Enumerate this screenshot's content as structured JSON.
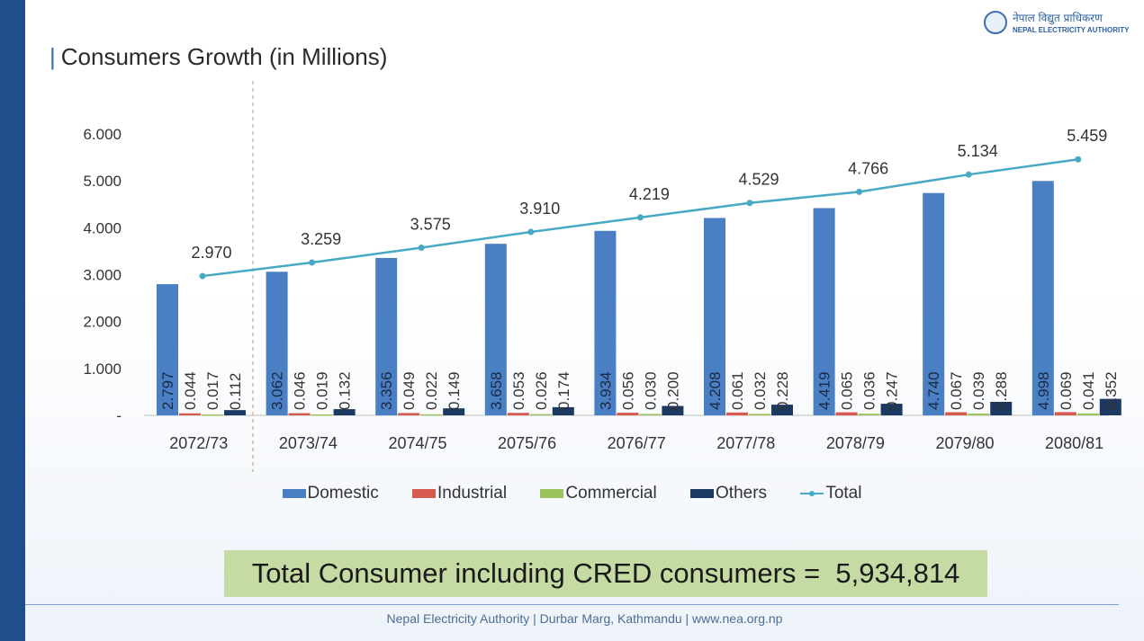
{
  "slide": {
    "title": "Consumers Growth (in Millions)",
    "logo_np": "नेपाल विद्युत प्राधिकरण",
    "logo_en": "NEPAL ELECTRICITY AUTHORITY",
    "highlight_label": "Total Consumer including CRED consumers =",
    "highlight_value": "5,934,814",
    "footer": "Nepal Electricity Authority | Durbar Marg, Kathmandu | www.nea.org.np"
  },
  "colors": {
    "domestic": "#4a7fc3",
    "industrial": "#d65a4e",
    "commercial": "#9bc25b",
    "others": "#1c3961",
    "total": "#48a9c5"
  },
  "chart_data": {
    "type": "bar",
    "categories": [
      "2072/73",
      "2073/74",
      "2074/75",
      "2075/76",
      "2076/77",
      "2077/78",
      "2078/79",
      "2079/80",
      "2080/81"
    ],
    "series": [
      {
        "name": "Domestic",
        "type": "bar",
        "values": [
          2.797,
          3.062,
          3.356,
          3.658,
          3.934,
          4.208,
          4.419,
          4.74,
          4.998
        ],
        "labels": [
          "2.797",
          "3.062",
          "3.356",
          "3.658",
          "3.934",
          "4.208",
          "4.419",
          "4.740",
          "4.998"
        ]
      },
      {
        "name": "Industrial",
        "type": "bar",
        "values": [
          0.044,
          0.046,
          0.049,
          0.053,
          0.056,
          0.061,
          0.065,
          0.067,
          0.069
        ],
        "labels": [
          "0.044",
          "0.046",
          "0.049",
          "0.053",
          "0.056",
          "0.061",
          "0.065",
          "0.067",
          "0.069"
        ]
      },
      {
        "name": "Commercial",
        "type": "bar",
        "values": [
          0.017,
          0.019,
          0.022,
          0.026,
          0.03,
          0.032,
          0.036,
          0.039,
          0.041
        ],
        "labels": [
          "0.017",
          "0.019",
          "0.022",
          "0.026",
          "0.030",
          "0.032",
          "0.036",
          "0.039",
          "0.041"
        ]
      },
      {
        "name": "Others",
        "type": "bar",
        "values": [
          0.112,
          0.132,
          0.149,
          0.174,
          0.2,
          0.228,
          0.247,
          0.288,
          0.352
        ],
        "labels": [
          "0.112",
          "0.132",
          "0.149",
          "0.174",
          "0.200",
          "0.228",
          "0.247",
          "0.288",
          "0.352"
        ]
      },
      {
        "name": "Total",
        "type": "line",
        "values": [
          2.97,
          3.259,
          3.575,
          3.91,
          4.219,
          4.529,
          4.766,
          5.134,
          5.459
        ],
        "labels": [
          "2.970",
          "3.259",
          "3.575",
          "3.910",
          "4.219",
          "4.529",
          "4.766",
          "5.134",
          "5.459"
        ]
      }
    ],
    "yticks": [
      "-",
      "1.000",
      "2.000",
      "3.000",
      "4.000",
      "5.000",
      "6.000"
    ],
    "ylim": [
      0,
      6
    ],
    "legend_position": "bottom",
    "grid": false
  }
}
